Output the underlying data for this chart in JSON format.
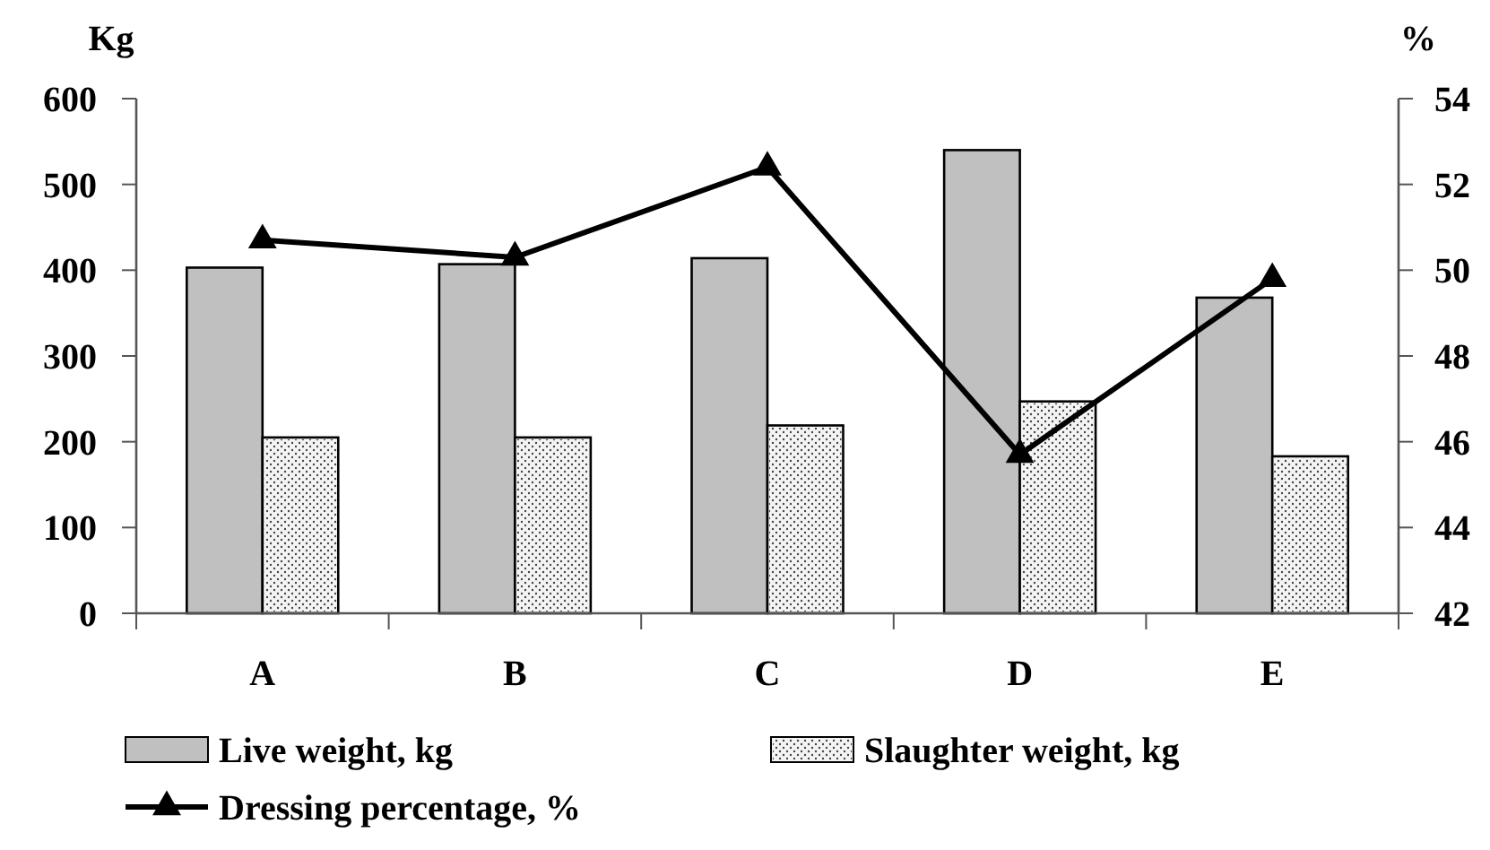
{
  "chart_data": {
    "type": "bar",
    "ylabel": "Kg",
    "y2label": "%",
    "categories": [
      "A",
      "B",
      "C",
      "D",
      "E"
    ],
    "series": [
      {
        "name": "Live weight, kg",
        "color": "#c0c0c0",
        "values": [
          403,
          407,
          414,
          540,
          368
        ]
      },
      {
        "name": "Slaughter weight, kg",
        "color": "#f4f4f4",
        "values": [
          205,
          205,
          219,
          247,
          183
        ]
      },
      {
        "name": "Dressing percentage, %",
        "type": "line",
        "axis": "y2",
        "color": "#000000",
        "marker": "triangle",
        "values": [
          50.7,
          50.3,
          52.4,
          45.7,
          49.8
        ]
      }
    ],
    "ylim": [
      0,
      600
    ],
    "yticks": [
      0,
      100,
      200,
      300,
      400,
      500,
      600
    ],
    "y2lim": [
      42,
      54
    ],
    "y2ticks": [
      42,
      44,
      46,
      48,
      50,
      52,
      54
    ],
    "grid": false,
    "legend": "bottom"
  }
}
